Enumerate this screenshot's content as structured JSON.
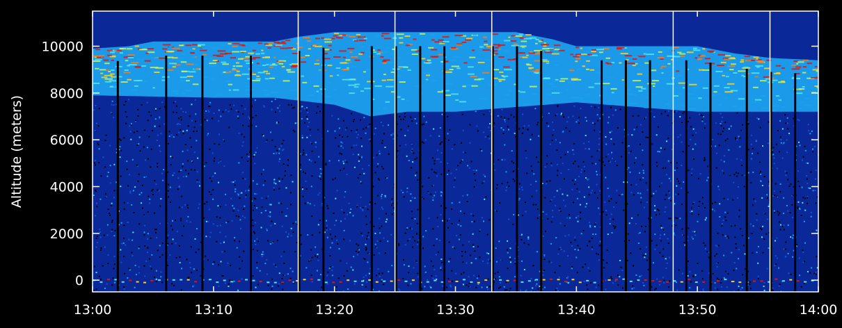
{
  "chart_data": {
    "type": "heatmap",
    "title": "",
    "xlabel": "",
    "ylabel": "Altitude (meters)",
    "x_ticks": [
      "13:00",
      "13:10",
      "13:20",
      "13:30",
      "13:40",
      "13:50",
      "14:00"
    ],
    "y_ticks": [
      "0",
      "2000",
      "4000",
      "6000",
      "8000",
      "10000"
    ],
    "xlim": [
      "13:00",
      "14:00"
    ],
    "ylim": [
      -500,
      11500
    ],
    "colormap": [
      "#000000",
      "#0a1f8a",
      "#1652d6",
      "#1aa2ee",
      "#52e6f0",
      "#c9f55a",
      "#ffd21e",
      "#ff7a10",
      "#e0140c"
    ],
    "background": "#000000",
    "frame_color": "#ffffff",
    "cloud_top_profile": [
      [
        "13:00",
        9900
      ],
      [
        "13:03",
        10000
      ],
      [
        "13:05",
        10200
      ],
      [
        "13:10",
        10200
      ],
      [
        "13:15",
        10200
      ],
      [
        "13:17",
        10400
      ],
      [
        "13:20",
        10600
      ],
      [
        "13:25",
        10600
      ],
      [
        "13:30",
        10600
      ],
      [
        "13:35",
        10600
      ],
      [
        "13:38",
        10300
      ],
      [
        "13:40",
        10000
      ],
      [
        "13:45",
        10000
      ],
      [
        "13:50",
        10000
      ],
      [
        "13:53",
        9700
      ],
      [
        "13:56",
        9500
      ],
      [
        "14:00",
        9400
      ]
    ],
    "cloud_base_profile": [
      [
        "13:00",
        7900
      ],
      [
        "13:10",
        7800
      ],
      [
        "13:15",
        7800
      ],
      [
        "13:20",
        7500
      ],
      [
        "13:23",
        7000
      ],
      [
        "13:26",
        7200
      ],
      [
        "13:30",
        7200
      ],
      [
        "13:35",
        7400
      ],
      [
        "13:40",
        7600
      ],
      [
        "13:45",
        7400
      ],
      [
        "13:50",
        7200
      ],
      [
        "14:00",
        7200
      ]
    ],
    "scan_gaps": [
      "13:02",
      "13:06",
      "13:09",
      "13:13",
      "13:17",
      "13:19",
      "13:23",
      "13:25",
      "13:27",
      "13:29",
      "13:33",
      "13:35",
      "13:37",
      "13:42",
      "13:44",
      "13:46",
      "13:49",
      "13:51",
      "13:54",
      "13:56",
      "13:58"
    ]
  }
}
